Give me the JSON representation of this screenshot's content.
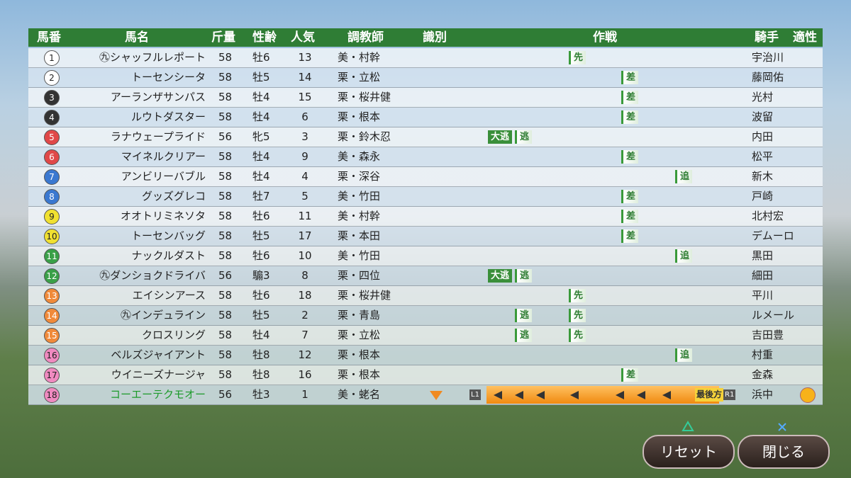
{
  "header": [
    "馬番",
    "馬名",
    "斤量",
    "性齢",
    "人気",
    "調教師",
    "識別",
    "作戦",
    "騎手",
    "適性"
  ],
  "rows": [
    {
      "no": "1",
      "name": "㊈シャッフルレポート",
      "weight": "58",
      "sex_age": "牡6",
      "pop": "13",
      "trainer": "美・村幹",
      "tactics": [
        null,
        null,
        "先",
        null,
        null
      ],
      "jockey": "宇治川"
    },
    {
      "no": "2",
      "name": "トーセンシータ",
      "weight": "58",
      "sex_age": "牡5",
      "pop": "14",
      "trainer": "栗・立松",
      "tactics": [
        null,
        null,
        null,
        "差",
        null
      ],
      "jockey": "藤岡佑"
    },
    {
      "no": "3",
      "name": "アーランザサンパス",
      "weight": "58",
      "sex_age": "牡4",
      "pop": "15",
      "trainer": "栗・桜井健",
      "tactics": [
        null,
        null,
        null,
        "差",
        null
      ],
      "jockey": "光村"
    },
    {
      "no": "4",
      "name": "ルウトダスター",
      "weight": "58",
      "sex_age": "牡4",
      "pop": "6",
      "trainer": "栗・根本",
      "tactics": [
        null,
        null,
        null,
        "差",
        null
      ],
      "jockey": "波留"
    },
    {
      "no": "5",
      "name": "ラナウェープライド",
      "weight": "56",
      "sex_age": "牝5",
      "pop": "3",
      "trainer": "栗・鈴木忍",
      "tactics": [
        "大逃",
        "逃",
        null,
        null,
        null
      ],
      "jockey": "内田"
    },
    {
      "no": "6",
      "name": "マイネルクリアー",
      "weight": "58",
      "sex_age": "牡4",
      "pop": "9",
      "trainer": "美・森永",
      "tactics": [
        null,
        null,
        null,
        "差",
        null
      ],
      "jockey": "松平"
    },
    {
      "no": "7",
      "name": "アンビリーバブル",
      "weight": "58",
      "sex_age": "牡4",
      "pop": "4",
      "trainer": "栗・深谷",
      "tactics": [
        null,
        null,
        null,
        null,
        "追"
      ],
      "jockey": "新木"
    },
    {
      "no": "8",
      "name": "グッズグレコ",
      "weight": "58",
      "sex_age": "牡7",
      "pop": "5",
      "trainer": "美・竹田",
      "tactics": [
        null,
        null,
        null,
        "差",
        null
      ],
      "jockey": "戸崎"
    },
    {
      "no": "9",
      "name": "オオトリミネソタ",
      "weight": "58",
      "sex_age": "牡6",
      "pop": "11",
      "trainer": "美・村幹",
      "tactics": [
        null,
        null,
        null,
        "差",
        null
      ],
      "jockey": "北村宏"
    },
    {
      "no": "10",
      "name": "トーセンバッグ",
      "weight": "58",
      "sex_age": "牡5",
      "pop": "17",
      "trainer": "栗・本田",
      "tactics": [
        null,
        null,
        null,
        "差",
        null
      ],
      "jockey": "デムーロ"
    },
    {
      "no": "11",
      "name": "ナックルダスト",
      "weight": "58",
      "sex_age": "牡6",
      "pop": "10",
      "trainer": "美・竹田",
      "tactics": [
        null,
        null,
        null,
        null,
        "追"
      ],
      "jockey": "黒田"
    },
    {
      "no": "12",
      "name": "㊈ダンショクドライバ",
      "weight": "56",
      "sex_age": "騸3",
      "pop": "8",
      "trainer": "栗・四位",
      "tactics": [
        "大逃",
        "逃",
        null,
        null,
        null
      ],
      "jockey": "細田"
    },
    {
      "no": "13",
      "name": "エイシンアース",
      "weight": "58",
      "sex_age": "牡6",
      "pop": "18",
      "trainer": "栗・桜井健",
      "tactics": [
        null,
        null,
        "先",
        null,
        null
      ],
      "jockey": "平川"
    },
    {
      "no": "14",
      "name": "㊈インデュライン",
      "weight": "58",
      "sex_age": "牡5",
      "pop": "2",
      "trainer": "栗・青島",
      "tactics": [
        null,
        "逃",
        "先",
        null,
        null
      ],
      "jockey": "ルメール"
    },
    {
      "no": "15",
      "name": "クロスリング",
      "weight": "58",
      "sex_age": "牡4",
      "pop": "7",
      "trainer": "栗・立松",
      "tactics": [
        null,
        "逃",
        "先",
        null,
        null
      ],
      "jockey": "吉田豊"
    },
    {
      "no": "16",
      "name": "ベルズジャイアント",
      "weight": "58",
      "sex_age": "牡8",
      "pop": "12",
      "trainer": "栗・根本",
      "tactics": [
        null,
        null,
        null,
        null,
        "追"
      ],
      "jockey": "村重"
    },
    {
      "no": "17",
      "name": "ウイニーズナージャ",
      "weight": "58",
      "sex_age": "牡8",
      "pop": "16",
      "trainer": "栗・根本",
      "tactics": [
        null,
        null,
        null,
        "差",
        null
      ],
      "jockey": "金森"
    },
    {
      "no": "18",
      "name": "コーエーテクモオー",
      "weight": "56",
      "sex_age": "牡3",
      "pop": "1",
      "trainer": "美・蛯名",
      "tactics": [
        null,
        null,
        null,
        null,
        null
      ],
      "jockey": "浜中"
    }
  ],
  "player_strategy": {
    "left": "L1",
    "badge": "最後方",
    "right": "R1"
  },
  "buttons": {
    "reset": "リセット",
    "close": "閉じる"
  }
}
